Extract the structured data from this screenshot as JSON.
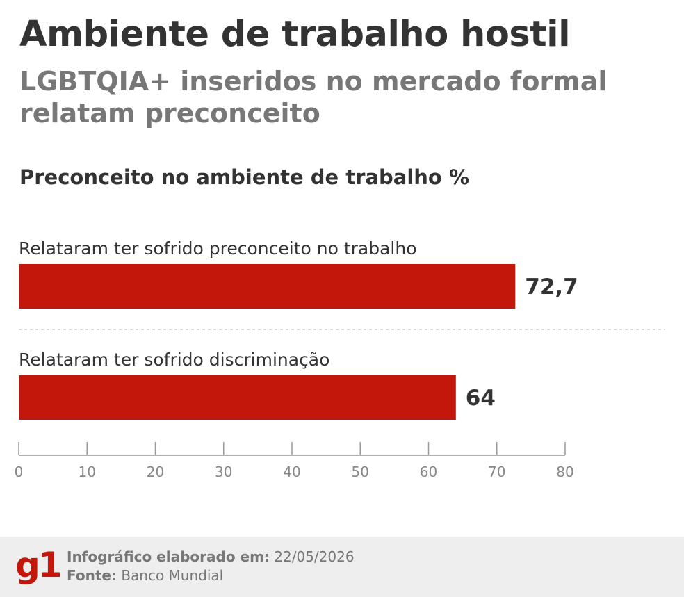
{
  "header": {
    "title": "Ambiente de trabalho hostil",
    "subtitle": "LGBTQIA+ inseridos no mercado formal relatam preconceito"
  },
  "chart_data": {
    "type": "bar",
    "orientation": "horizontal",
    "title": "Preconceito no ambiente de trabalho %",
    "categories": [
      "Relataram ter sofrido preconceito no trabalho",
      "Relataram ter sofrido discriminação"
    ],
    "values": [
      72.7,
      64
    ],
    "value_labels": [
      "72,7",
      "64"
    ],
    "xlim": [
      0,
      80
    ],
    "ticks": [
      0,
      10,
      20,
      30,
      40,
      50,
      60,
      70,
      80
    ],
    "bar_color": "#c4170c",
    "grid": false
  },
  "footer": {
    "logo": "g1",
    "made_label": "Infográfico elaborado em:",
    "made_value": "22/05/2026",
    "source_label": "Fonte:",
    "source_value": "Banco Mundial"
  },
  "colors": {
    "accent": "#c4170c",
    "title": "#333333",
    "subtitle": "#777777",
    "footer_bg": "#eeeeee"
  }
}
